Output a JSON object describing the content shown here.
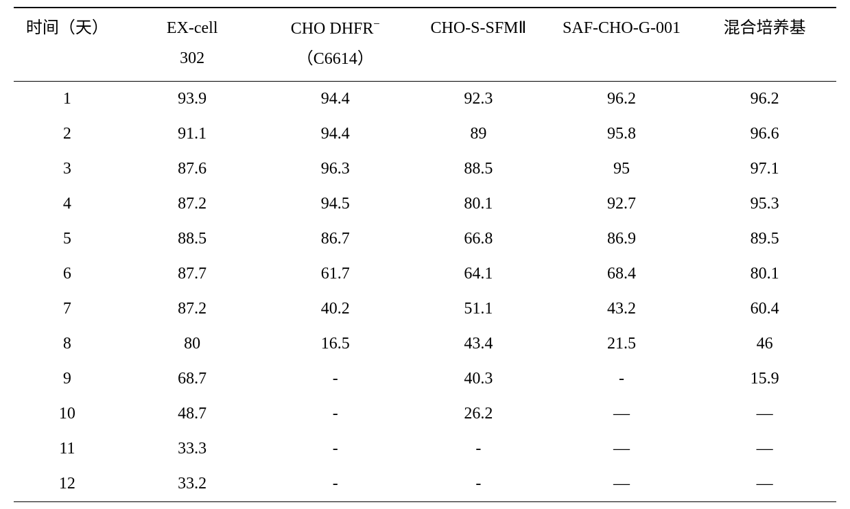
{
  "table": {
    "type": "table",
    "background_color": "#ffffff",
    "text_color": "#000000",
    "border_color": "#000000",
    "font_family": "Times New Roman, SimSun, serif",
    "font_size_pt": 18,
    "columns": [
      {
        "key": "time",
        "label_line1": "时间（天）",
        "label_line2": "",
        "width_pct": 13,
        "align": "center"
      },
      {
        "key": "excell",
        "label_line1": "EX-cell",
        "label_line2": "302",
        "width_pct": 17.4,
        "align": "center"
      },
      {
        "key": "chodhfr",
        "label_line1": "CHO DHFR",
        "superscript": "−",
        "label_line2": "（C6614）",
        "width_pct": 17.4,
        "align": "center"
      },
      {
        "key": "chossfm",
        "label_line1": "CHO-S-SFMⅡ",
        "label_line2": "",
        "width_pct": 17.4,
        "align": "center"
      },
      {
        "key": "safcho",
        "label_line1": "SAF-CHO-G-001",
        "label_line2": "",
        "width_pct": 17.4,
        "align": "center"
      },
      {
        "key": "mixed",
        "label_line1": "混合培养基",
        "label_line2": "",
        "width_pct": 17.4,
        "align": "center"
      }
    ],
    "rows": [
      [
        "1",
        "93.9",
        "94.4",
        "92.3",
        "96.2",
        "96.2"
      ],
      [
        "2",
        "91.1",
        "94.4",
        "89",
        "95.8",
        "96.6"
      ],
      [
        "3",
        "87.6",
        "96.3",
        "88.5",
        "95",
        "97.1"
      ],
      [
        "4",
        "87.2",
        "94.5",
        "80.1",
        "92.7",
        "95.3"
      ],
      [
        "5",
        "88.5",
        "86.7",
        "66.8",
        "86.9",
        "89.5"
      ],
      [
        "6",
        "87.7",
        "61.7",
        "64.1",
        "68.4",
        "80.1"
      ],
      [
        "7",
        "87.2",
        "40.2",
        "51.1",
        "43.2",
        "60.4"
      ],
      [
        "8",
        "80",
        "16.5",
        "43.4",
        "21.5",
        "46"
      ],
      [
        "9",
        "68.7",
        "-",
        "40.3",
        "-",
        "15.9"
      ],
      [
        "10",
        "48.7",
        "-",
        "26.2",
        "—",
        "—"
      ],
      [
        "11",
        "33.3",
        "-",
        "-",
        "—",
        "—"
      ],
      [
        "12",
        "33.2",
        "-",
        "-",
        "—",
        "—"
      ]
    ]
  }
}
